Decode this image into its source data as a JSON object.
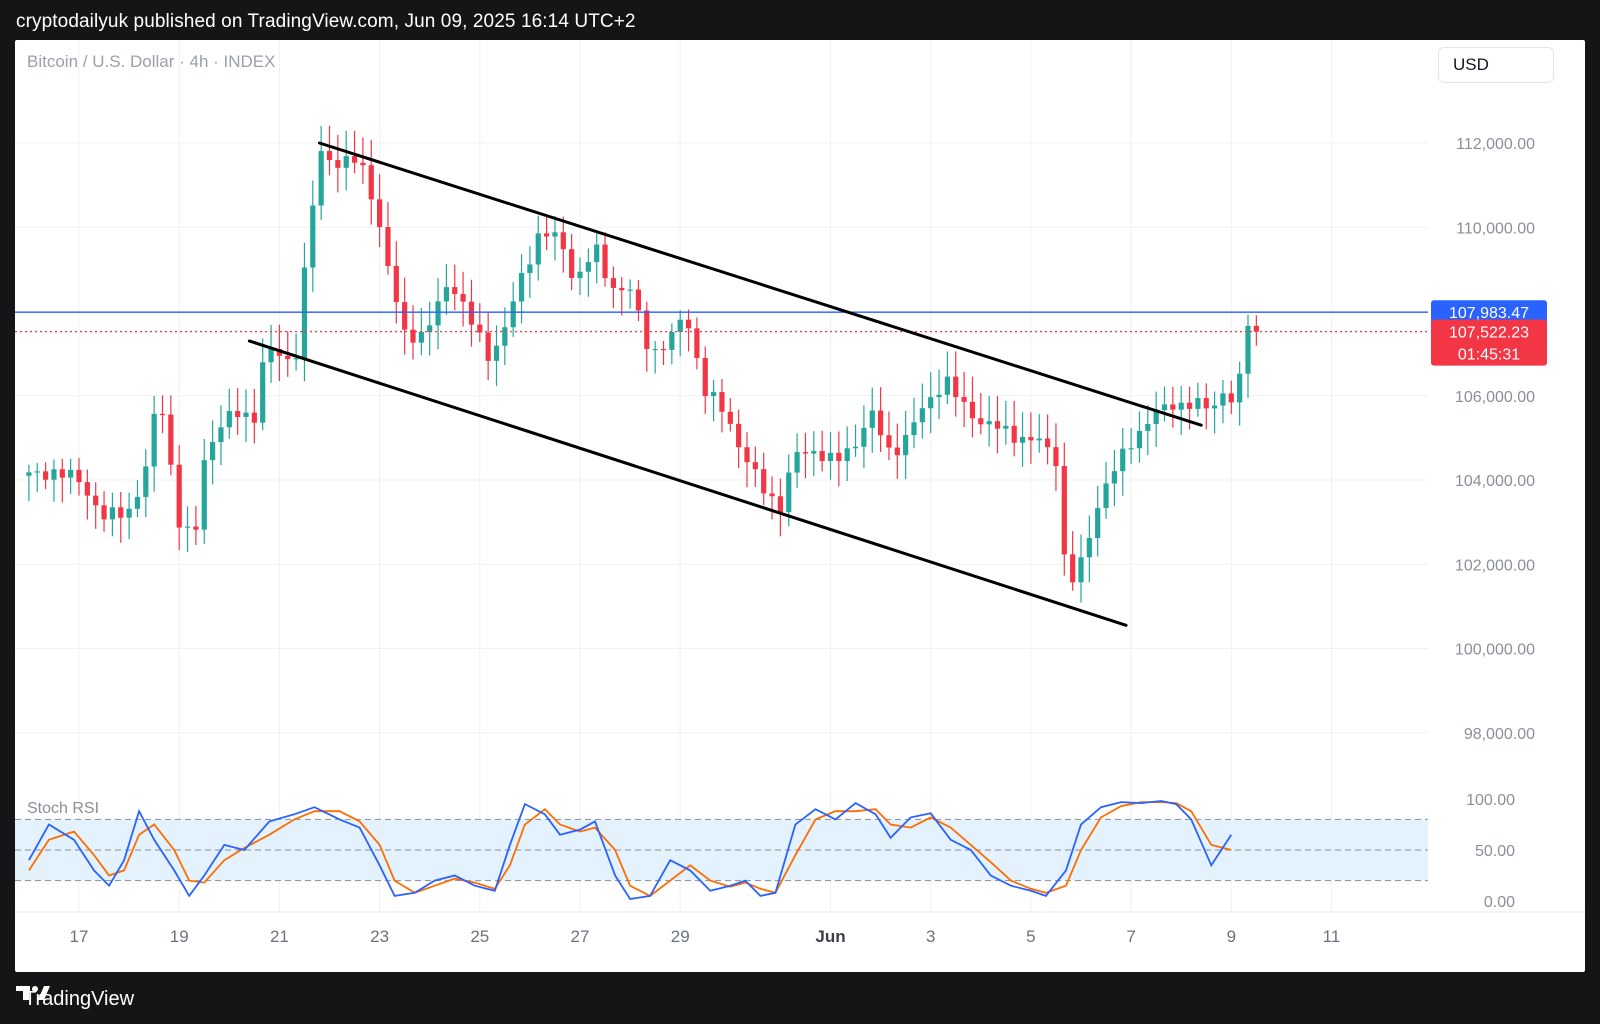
{
  "header": {
    "text": "cryptodailyuk published on TradingView.com, Jun 09, 2025 16:14 UTC+2"
  },
  "chart": {
    "symbol": "Bitcoin / U.S. Dollar · 4h · INDEX",
    "currency": "USD",
    "indicator_label": "Stoch RSI"
  },
  "footer": {
    "brand": "TradingView"
  },
  "colors": {
    "up": "#26a69a",
    "down": "#f23645",
    "blue_line": "#2962ff",
    "stoch_k": "#2962ff",
    "stoch_d": "#ff6d00",
    "stoch_band": "#e3f2fd"
  },
  "chart_data": {
    "type": "candlestick",
    "timeframe": "4h",
    "y_axis_ticks": [
      {
        "value": 112000,
        "label": "112,000.00"
      },
      {
        "value": 110000,
        "label": "110,000.00"
      },
      {
        "value": 106000,
        "label": "106,000.00"
      },
      {
        "value": 104000,
        "label": "104,000.00"
      },
      {
        "value": 102000,
        "label": "102,000.00"
      },
      {
        "value": 100000,
        "label": "100,000.00"
      },
      {
        "value": 98000,
        "label": "98,000.00"
      }
    ],
    "price_tags": [
      {
        "label": "107,983.47",
        "value": 107983.47,
        "color": "#2962ff"
      },
      {
        "label": "107,522.23",
        "value": 107522.23,
        "sub": "01:45:31",
        "color": "#f23645"
      }
    ],
    "x_axis_labels": [
      {
        "label": "17",
        "day": 17
      },
      {
        "label": "19",
        "day": 19
      },
      {
        "label": "21",
        "day": 21
      },
      {
        "label": "23",
        "day": 23
      },
      {
        "label": "25",
        "day": 25
      },
      {
        "label": "27",
        "day": 27
      },
      {
        "label": "29",
        "day": 29
      },
      {
        "label": "Jun",
        "day": 32,
        "bold": true
      },
      {
        "label": "3",
        "day": 34
      },
      {
        "label": "5",
        "day": 36
      },
      {
        "label": "7",
        "day": 38
      },
      {
        "label": "9",
        "day": 40
      },
      {
        "label": "11",
        "day": 42
      }
    ],
    "stoch_ticks": [
      {
        "value": 100,
        "label": "100.00"
      },
      {
        "value": 50,
        "label": "50.00"
      },
      {
        "value": 0,
        "label": "0.00"
      }
    ],
    "trendlines": [
      {
        "from": [
          21.8,
          112000
        ],
        "to": [
          39.4,
          105300
        ]
      },
      {
        "from": [
          20.4,
          107300
        ],
        "to": [
          37.9,
          100550
        ]
      }
    ],
    "candles_anchors": [
      [
        16.0,
        104100
      ],
      [
        16.5,
        104200
      ],
      [
        17.0,
        104000
      ],
      [
        17.5,
        103100
      ],
      [
        18.0,
        103300
      ],
      [
        18.3,
        104000
      ],
      [
        18.6,
        106200
      ],
      [
        19.0,
        103000
      ],
      [
        19.3,
        102500
      ],
      [
        19.5,
        104500
      ],
      [
        19.8,
        105300
      ],
      [
        20.2,
        105600
      ],
      [
        20.5,
        105500
      ],
      [
        20.7,
        107000
      ],
      [
        21.0,
        107000
      ],
      [
        21.3,
        106700
      ],
      [
        21.5,
        108900
      ],
      [
        21.8,
        111800
      ],
      [
        22.2,
        111500
      ],
      [
        22.6,
        111600
      ],
      [
        22.9,
        110600
      ],
      [
        23.2,
        108800
      ],
      [
        23.5,
        107500
      ],
      [
        23.9,
        107400
      ],
      [
        24.4,
        108800
      ],
      [
        24.8,
        107800
      ],
      [
        25.2,
        106900
      ],
      [
        25.5,
        107600
      ],
      [
        25.8,
        108700
      ],
      [
        26.2,
        109900
      ],
      [
        26.6,
        109700
      ],
      [
        26.9,
        108700
      ],
      [
        27.3,
        109500
      ],
      [
        27.6,
        108600
      ],
      [
        28.0,
        108500
      ],
      [
        28.4,
        107000
      ],
      [
        28.8,
        107300
      ],
      [
        29.1,
        108000
      ],
      [
        29.5,
        106100
      ],
      [
        29.9,
        105600
      ],
      [
        30.3,
        104500
      ],
      [
        30.7,
        103700
      ],
      [
        31.0,
        103400
      ],
      [
        31.3,
        104600
      ],
      [
        31.7,
        104700
      ],
      [
        32.1,
        104400
      ],
      [
        32.5,
        104900
      ],
      [
        32.8,
        105600
      ],
      [
        33.2,
        104600
      ],
      [
        33.5,
        105000
      ],
      [
        33.9,
        105800
      ],
      [
        34.3,
        106400
      ],
      [
        34.6,
        105800
      ],
      [
        35.0,
        105400
      ],
      [
        35.4,
        105200
      ],
      [
        35.8,
        105000
      ],
      [
        36.2,
        104900
      ],
      [
        36.5,
        104500
      ],
      [
        36.7,
        101700
      ],
      [
        36.9,
        101600
      ],
      [
        37.1,
        102400
      ],
      [
        37.4,
        103700
      ],
      [
        37.7,
        104300
      ],
      [
        38.0,
        104900
      ],
      [
        38.4,
        105500
      ],
      [
        38.8,
        105800
      ],
      [
        39.2,
        105800
      ],
      [
        39.6,
        105700
      ],
      [
        39.9,
        106200
      ],
      [
        40.1,
        105600
      ],
      [
        40.3,
        107800
      ],
      [
        40.5,
        107522
      ]
    ],
    "stoch_k_anchors": [
      [
        16.0,
        40
      ],
      [
        16.4,
        75
      ],
      [
        16.9,
        60
      ],
      [
        17.3,
        30
      ],
      [
        17.6,
        15
      ],
      [
        17.9,
        40
      ],
      [
        18.2,
        88
      ],
      [
        18.5,
        60
      ],
      [
        18.9,
        30
      ],
      [
        19.2,
        5
      ],
      [
        19.5,
        25
      ],
      [
        19.9,
        55
      ],
      [
        20.3,
        50
      ],
      [
        20.8,
        78
      ],
      [
        21.3,
        85
      ],
      [
        21.7,
        92
      ],
      [
        22.2,
        80
      ],
      [
        22.6,
        72
      ],
      [
        23.0,
        35
      ],
      [
        23.3,
        5
      ],
      [
        23.7,
        8
      ],
      [
        24.1,
        20
      ],
      [
        24.5,
        25
      ],
      [
        24.9,
        15
      ],
      [
        25.3,
        10
      ],
      [
        25.6,
        55
      ],
      [
        25.9,
        95
      ],
      [
        26.3,
        85
      ],
      [
        26.6,
        65
      ],
      [
        27.0,
        70
      ],
      [
        27.3,
        78
      ],
      [
        27.7,
        25
      ],
      [
        28.0,
        2
      ],
      [
        28.4,
        5
      ],
      [
        28.8,
        40
      ],
      [
        29.2,
        30
      ],
      [
        29.6,
        10
      ],
      [
        30.0,
        15
      ],
      [
        30.3,
        20
      ],
      [
        30.6,
        5
      ],
      [
        30.9,
        8
      ],
      [
        31.3,
        75
      ],
      [
        31.7,
        90
      ],
      [
        32.1,
        80
      ],
      [
        32.5,
        96
      ],
      [
        32.9,
        85
      ],
      [
        33.2,
        62
      ],
      [
        33.6,
        82
      ],
      [
        34.0,
        86
      ],
      [
        34.4,
        60
      ],
      [
        34.8,
        50
      ],
      [
        35.2,
        25
      ],
      [
        35.6,
        15
      ],
      [
        36.0,
        10
      ],
      [
        36.3,
        5
      ],
      [
        36.7,
        30
      ],
      [
        37.0,
        75
      ],
      [
        37.4,
        92
      ],
      [
        37.8,
        97
      ],
      [
        38.2,
        96
      ],
      [
        38.6,
        98
      ],
      [
        38.9,
        95
      ],
      [
        39.2,
        80
      ],
      [
        39.6,
        35
      ],
      [
        40.0,
        65
      ]
    ],
    "stoch_d_anchors": [
      [
        16.0,
        30
      ],
      [
        16.4,
        60
      ],
      [
        16.9,
        68
      ],
      [
        17.3,
        45
      ],
      [
        17.6,
        25
      ],
      [
        17.9,
        30
      ],
      [
        18.2,
        65
      ],
      [
        18.5,
        75
      ],
      [
        18.9,
        50
      ],
      [
        19.2,
        20
      ],
      [
        19.5,
        18
      ],
      [
        19.9,
        40
      ],
      [
        20.3,
        52
      ],
      [
        20.8,
        65
      ],
      [
        21.3,
        80
      ],
      [
        21.7,
        88
      ],
      [
        22.2,
        88
      ],
      [
        22.6,
        78
      ],
      [
        23.0,
        55
      ],
      [
        23.3,
        20
      ],
      [
        23.7,
        8
      ],
      [
        24.1,
        15
      ],
      [
        24.5,
        22
      ],
      [
        24.9,
        18
      ],
      [
        25.3,
        12
      ],
      [
        25.6,
        35
      ],
      [
        25.9,
        75
      ],
      [
        26.3,
        90
      ],
      [
        26.6,
        75
      ],
      [
        27.0,
        68
      ],
      [
        27.3,
        72
      ],
      [
        27.7,
        50
      ],
      [
        28.0,
        15
      ],
      [
        28.4,
        5
      ],
      [
        28.8,
        20
      ],
      [
        29.2,
        35
      ],
      [
        29.6,
        20
      ],
      [
        30.0,
        14
      ],
      [
        30.3,
        18
      ],
      [
        30.6,
        12
      ],
      [
        30.9,
        8
      ],
      [
        31.3,
        45
      ],
      [
        31.7,
        80
      ],
      [
        32.1,
        88
      ],
      [
        32.5,
        88
      ],
      [
        32.9,
        90
      ],
      [
        33.2,
        75
      ],
      [
        33.6,
        72
      ],
      [
        34.0,
        82
      ],
      [
        34.4,
        72
      ],
      [
        34.8,
        55
      ],
      [
        35.2,
        38
      ],
      [
        35.6,
        20
      ],
      [
        36.0,
        12
      ],
      [
        36.3,
        8
      ],
      [
        36.7,
        15
      ],
      [
        37.0,
        50
      ],
      [
        37.4,
        82
      ],
      [
        37.8,
        93
      ],
      [
        38.2,
        97
      ],
      [
        38.6,
        97
      ],
      [
        38.9,
        96
      ],
      [
        39.2,
        88
      ],
      [
        39.6,
        55
      ],
      [
        40.0,
        50
      ]
    ]
  }
}
